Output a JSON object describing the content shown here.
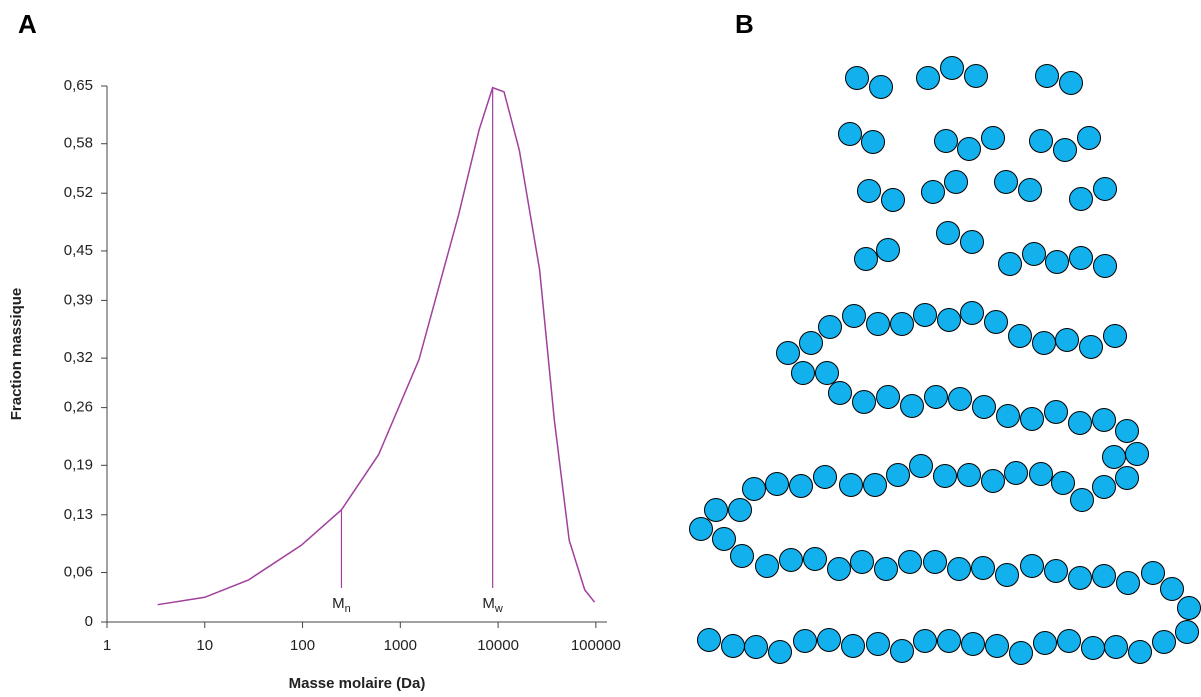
{
  "panel_labels": {
    "a": "A",
    "b": "B"
  },
  "chart_data": {
    "type": "line",
    "x_label": "Masse molaire (Da)",
    "y_label": "Fraction massique",
    "x_scale": "log",
    "xlim": [
      1,
      130000
    ],
    "xticks": [
      1,
      10,
      100,
      1000,
      10000,
      100000
    ],
    "ylim": [
      0,
      0.65
    ],
    "yticks": [
      0,
      {
        "value": 0.06,
        "label": "0,06"
      },
      {
        "value": 0.13,
        "label": "0,13"
      },
      {
        "value": 0.19,
        "label": "0,19"
      },
      {
        "value": 0.26,
        "label": "0,26"
      },
      {
        "value": 0.32,
        "label": "0,32"
      },
      {
        "value": 0.39,
        "label": "0,39"
      },
      {
        "value": 0.45,
        "label": "0,45"
      },
      {
        "value": 0.52,
        "label": "0,52"
      },
      {
        "value": 0.58,
        "label": "0,58"
      },
      {
        "value": 0.65,
        "label": "0,65"
      }
    ],
    "grid": false,
    "color": "#a0409c",
    "x": [
      3.3,
      10,
      28,
      97,
      250,
      600,
      1550,
      3950,
      6400,
      8800,
      11500,
      16500,
      26600,
      37600,
      53400,
      77000,
      97000
    ],
    "values": [
      0.021,
      0.03,
      0.051,
      0.093,
      0.136,
      0.203,
      0.318,
      0.494,
      0.597,
      0.648,
      0.643,
      0.572,
      0.427,
      0.245,
      0.099,
      0.039,
      0.024
    ],
    "annotations": [
      {
        "label": "M",
        "sub": "n",
        "x": 250,
        "y": 0.136
      },
      {
        "label": "M",
        "sub": "w",
        "x": 8800,
        "y": 0.648
      }
    ]
  }
}
